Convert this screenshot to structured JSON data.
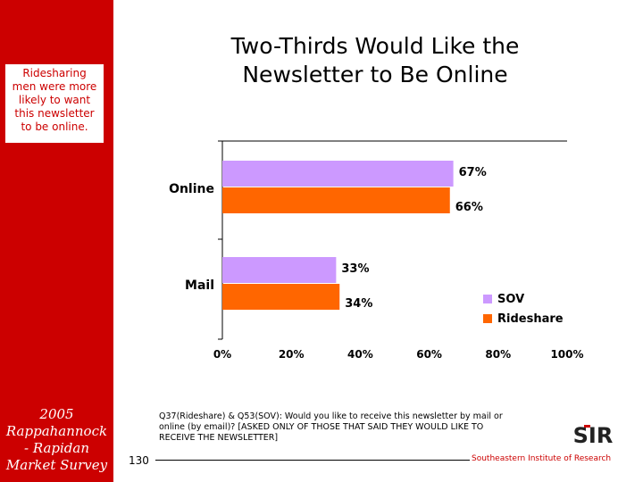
{
  "sidebar": {
    "callout_lines": [
      "Ridesharing",
      "men were more",
      "likely to want",
      "this newsletter",
      "to be online."
    ],
    "survey_lines": [
      "2005",
      "Rappahannock",
      "- Rapidan",
      "Market Survey"
    ]
  },
  "title_lines": [
    "Two-Thirds Would Like the",
    "Newsletter to Be Online"
  ],
  "chart_data": {
    "type": "bar",
    "orientation": "horizontal",
    "title": "Two-Thirds Would Like the Newsletter to Be Online",
    "categories": [
      "Online",
      "Mail"
    ],
    "series": [
      {
        "name": "SOV",
        "values": [
          67,
          33
        ],
        "labels": [
          "67%",
          "33%"
        ],
        "color": "#cc99ff"
      },
      {
        "name": "Rideshare",
        "values": [
          66,
          34
        ],
        "labels": [
          "66%",
          "34%"
        ],
        "color": "#ff6600"
      }
    ],
    "xlim": [
      0,
      100
    ],
    "xticks": [
      "0%",
      "20%",
      "40%",
      "60%",
      "80%",
      "100%"
    ],
    "xlabel": "",
    "ylabel": "",
    "grid": false,
    "legend_position": "lower-right"
  },
  "footnote_lines": [
    "Q37(Rideshare) & Q53(SOV): Would you like to receive this newsletter by mail or",
    "online (by email)? [ASKED ONLY OF THOSE THAT SAID THEY WOULD LIKE TO",
    "RECEIVE THE NEWSLETTER]"
  ],
  "footer": {
    "page_number": "130",
    "organization": "Southeastern Institute of Research",
    "logo_text": "SIR"
  },
  "colors": {
    "sidebar": "#cc0000",
    "sov": "#cc99ff",
    "rideshare": "#ff6600",
    "org_text": "#cc0000"
  }
}
